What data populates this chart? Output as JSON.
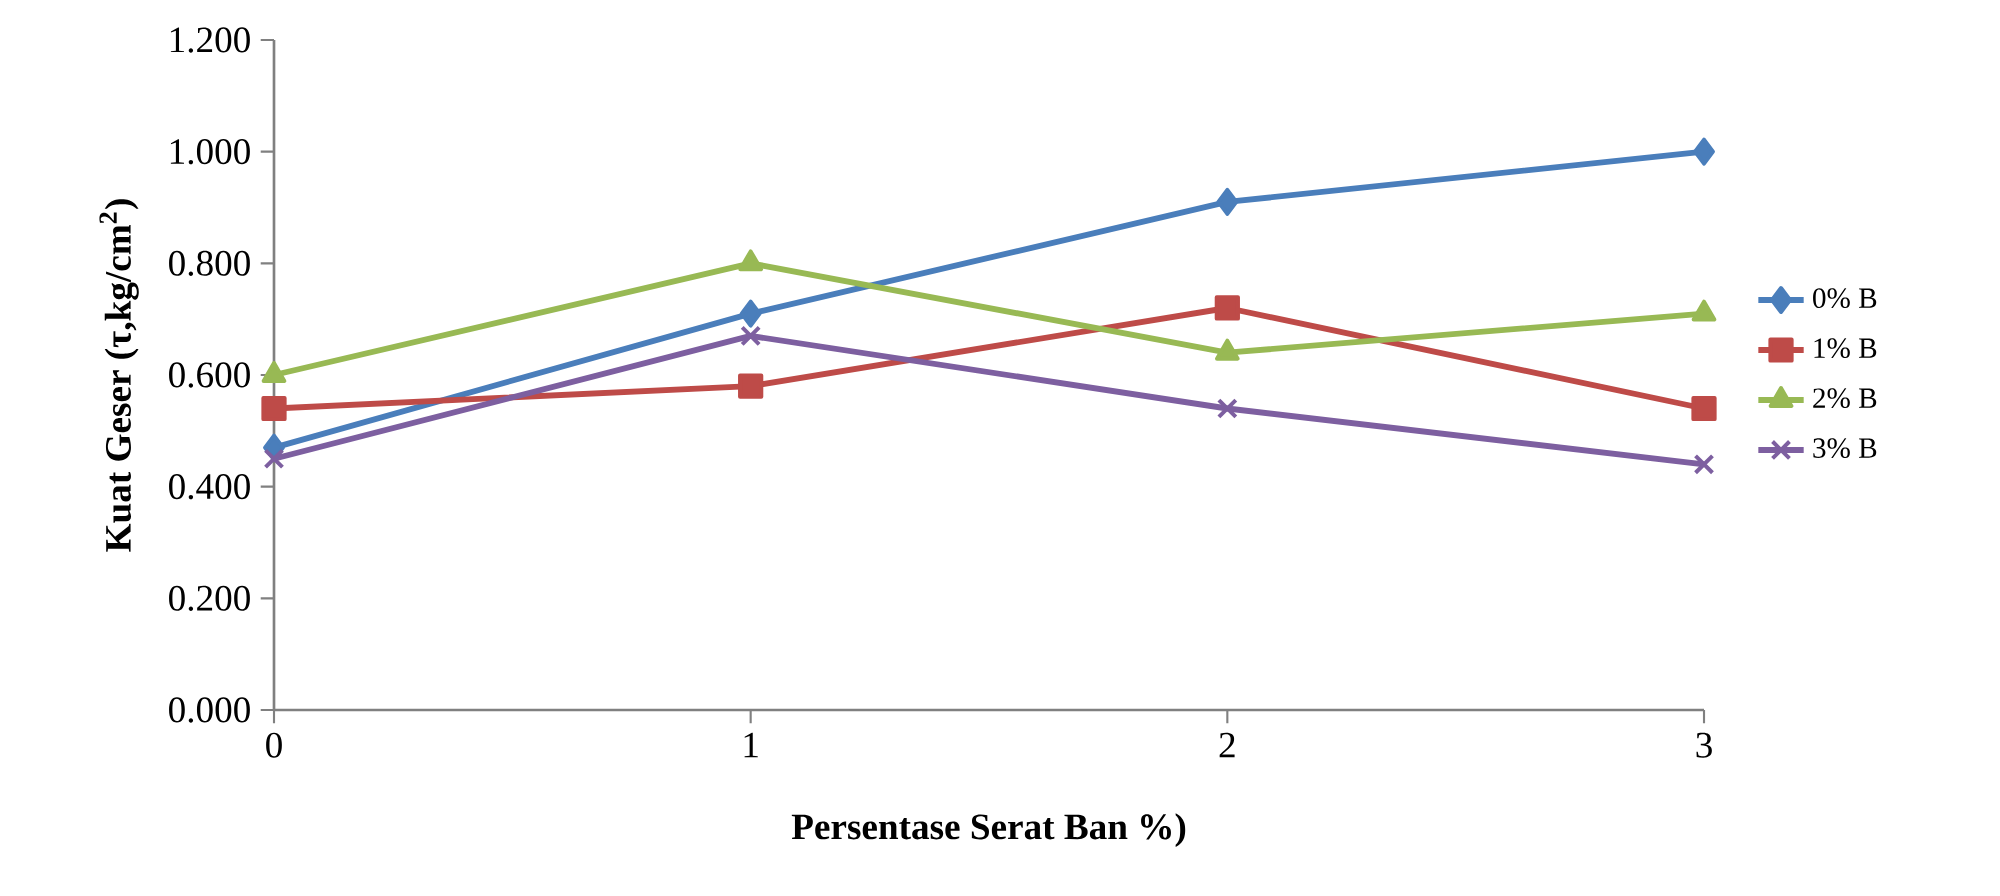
{
  "chart_data": {
    "type": "line",
    "xlabel": "Persentase Serat Ban %)",
    "ylabel": "Kuat Geser  (τ,kg/cm$^{2}$)",
    "x": [
      0,
      1,
      2,
      3
    ],
    "xlim": [
      0,
      3
    ],
    "xticks": [
      0,
      1,
      2,
      3
    ],
    "ylim": [
      0,
      1.2
    ],
    "yticks": [
      {
        "value": 0,
        "label": "0.000"
      },
      {
        "value": 0.2,
        "label": "0.200"
      },
      {
        "value": 0.4,
        "label": "0.400"
      },
      {
        "value": 0.6,
        "label": "0.600"
      },
      {
        "value": 0.8,
        "label": "0.800"
      },
      {
        "value": 1.0,
        "label": "1.000"
      },
      {
        "value": 1.2,
        "label": "1.200"
      }
    ],
    "grid": false,
    "legend": "right",
    "series": [
      {
        "name": "0% B",
        "color": "#4a7ebb",
        "marker": "diamond",
        "values": [
          0.47,
          0.71,
          0.91,
          1.0
        ]
      },
      {
        "name": "1% B",
        "color": "#be4b48",
        "marker": "square",
        "values": [
          0.54,
          0.58,
          0.72,
          0.54
        ]
      },
      {
        "name": "2% B",
        "color": "#98b954",
        "marker": "triangle",
        "values": [
          0.6,
          0.8,
          0.64,
          0.71
        ]
      },
      {
        "name": "3% B",
        "color": "#7d5fa0",
        "marker": "cross",
        "values": [
          0.45,
          0.67,
          0.54,
          0.44
        ]
      }
    ]
  }
}
